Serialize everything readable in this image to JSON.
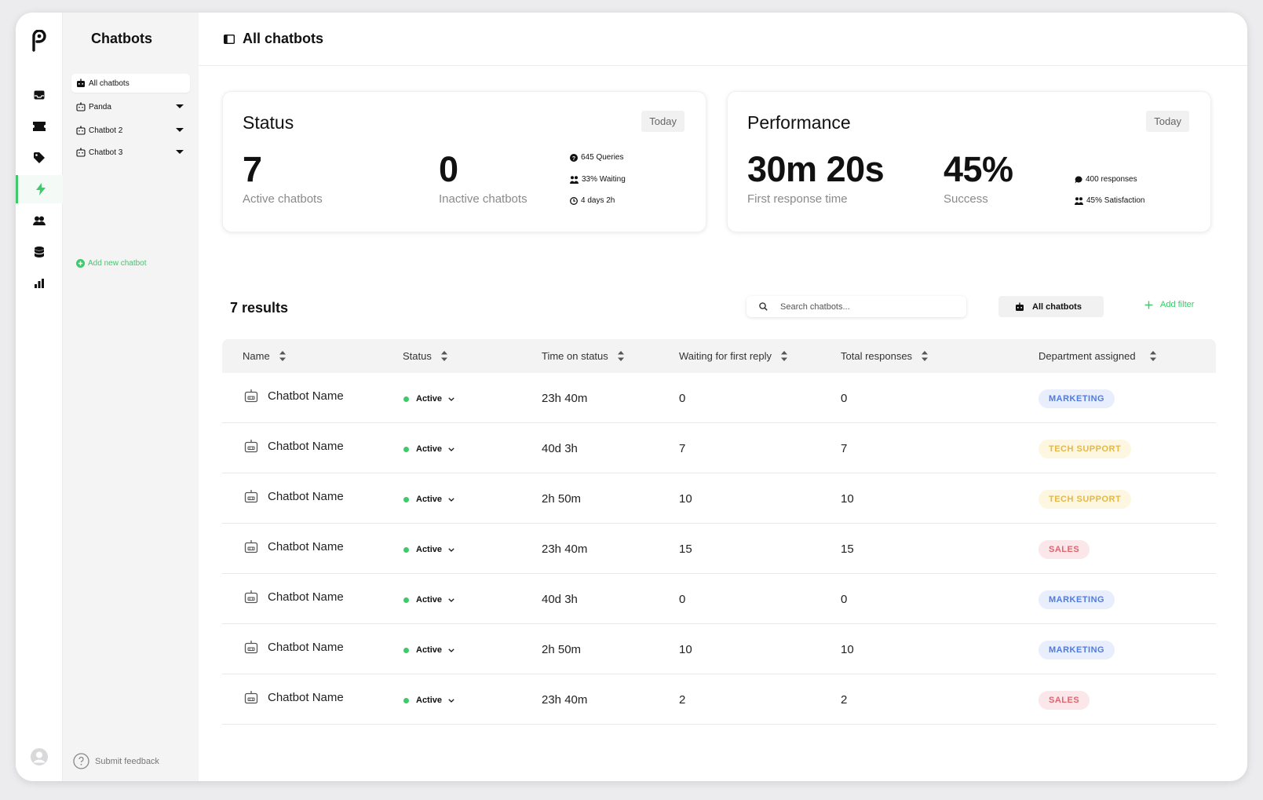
{
  "sidebar": {
    "title": "Chatbots",
    "items": [
      {
        "label": "All chatbots"
      },
      {
        "label": "Panda"
      },
      {
        "label": "Chatbot 2"
      },
      {
        "label": "Chatbot 3"
      }
    ],
    "add_label": "Add new chatbot",
    "feedback_label": "Submit feedback"
  },
  "header": {
    "title": "All chatbots"
  },
  "status_card": {
    "title": "Status",
    "period": "Today",
    "active_value": "7",
    "active_label": "Active chatbots",
    "inactive_value": "0",
    "inactive_label": "Inactive chatbots",
    "stats": [
      "645 Queries",
      "33% Waiting",
      "4 days 2h"
    ]
  },
  "performance_card": {
    "title": "Performance",
    "period": "Today",
    "response_value": "30m 20s",
    "response_label": "First response time",
    "success_value": "45%",
    "success_label": "Success",
    "stats": [
      "400 responses",
      "45% Satisfaction"
    ]
  },
  "toolbar": {
    "results": "7 results",
    "search_placeholder": "Search chatbots...",
    "all_label": "All chatbots",
    "add_filter": "Add filter"
  },
  "table": {
    "headers": [
      "Name",
      "Status",
      "Time on status",
      "Waiting for first reply",
      "Total responses",
      "Department assigned"
    ],
    "rows": [
      {
        "name": "Chatbot Name",
        "status": "Active",
        "time": "23h 40m",
        "waiting": "0",
        "total": "0",
        "dept": "MARKETING"
      },
      {
        "name": "Chatbot Name",
        "status": "Active",
        "time": "40d 3h",
        "waiting": "7",
        "total": "7",
        "dept": "TECH SUPPORT"
      },
      {
        "name": "Chatbot Name",
        "status": "Active",
        "time": "2h 50m",
        "waiting": "10",
        "total": "10",
        "dept": "TECH SUPPORT"
      },
      {
        "name": "Chatbot Name",
        "status": "Active",
        "time": "23h 40m",
        "waiting": "15",
        "total": "15",
        "dept": "SALES"
      },
      {
        "name": "Chatbot Name",
        "status": "Active",
        "time": "40d 3h",
        "waiting": "0",
        "total": "0",
        "dept": "MARKETING"
      },
      {
        "name": "Chatbot Name",
        "status": "Active",
        "time": "2h 50m",
        "waiting": "10",
        "total": "10",
        "dept": "MARKETING"
      },
      {
        "name": "Chatbot Name",
        "status": "Active",
        "time": "23h 40m",
        "waiting": "2",
        "total": "2",
        "dept": "SALES"
      }
    ]
  },
  "colors": {
    "accent": "#3ec96a",
    "marketing": "#4f7be0",
    "tech": "#e4b843",
    "sales": "#e0636f"
  }
}
